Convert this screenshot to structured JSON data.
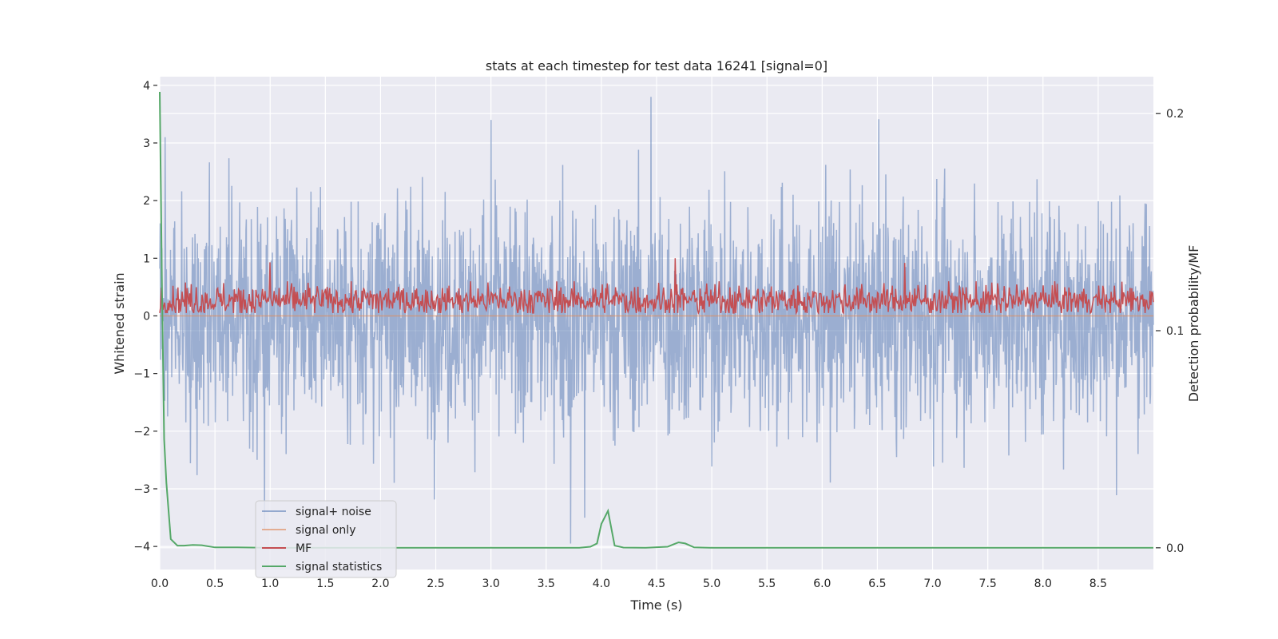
{
  "chart_data": {
    "type": "line",
    "title": "stats at each timestep for test data 16241 [signal=0]",
    "xlabel": "Time (s)",
    "ylabel": "Whitened strain",
    "ylabel_right": "Detection probability/MF",
    "xlim": [
      0.0,
      9.0
    ],
    "ylim": [
      -4.4,
      4.15
    ],
    "ylim_right": [
      -0.01,
      0.217
    ],
    "x_ticks": [
      "0.0",
      "0.5",
      "1.0",
      "1.5",
      "2.0",
      "2.5",
      "3.0",
      "3.5",
      "4.0",
      "4.5",
      "5.0",
      "5.5",
      "6.0",
      "6.5",
      "7.0",
      "7.5",
      "8.0",
      "8.5"
    ],
    "y_ticks": [
      "4",
      "3",
      "2",
      "1",
      "0",
      "−1",
      "−2",
      "−3",
      "−4"
    ],
    "y_ticks_right": [
      "0.2",
      "0.1",
      "0.0"
    ],
    "grid": true,
    "legend_position": "lower-left",
    "background": "#eaeaf2",
    "series": [
      {
        "name": "signal+ noise",
        "axis": "left",
        "color": "#4c72b0",
        "opacity": 0.5,
        "description": "dense noise oscillating roughly between -2.5 and 2.5 with spikes near ±3.5",
        "sample_range": [
          0.0,
          9.0
        ],
        "typical_amplitude": 1.0,
        "peaks": [
          {
            "x": 4.45,
            "y": 3.8
          },
          {
            "x": 3.0,
            "y": 3.4
          },
          {
            "x": 0.05,
            "y": 3.1
          }
        ],
        "troughs": [
          {
            "x": 3.72,
            "y": -4.0
          },
          {
            "x": 0.95,
            "y": -3.7
          },
          {
            "x": 3.85,
            "y": -3.5
          }
        ]
      },
      {
        "name": "signal only",
        "axis": "left",
        "color": "#dd8452",
        "values_x": [
          0.0,
          9.0
        ],
        "values_y": [
          0.0,
          0.0
        ]
      },
      {
        "name": "MF",
        "axis": "left",
        "color": "#c44e52",
        "description": "noisy band roughly between 0.05 and 0.6 with peaks near 1.0",
        "typical_range": [
          0.05,
          0.6
        ],
        "peaks": [
          {
            "x": 4.67,
            "y": 1.0
          },
          {
            "x": 1.0,
            "y": 0.93
          },
          {
            "x": 6.75,
            "y": 0.92
          }
        ]
      },
      {
        "name": "signal statistics",
        "axis": "right",
        "color": "#55a868",
        "x": [
          0.0,
          0.02,
          0.04,
          0.06,
          0.1,
          0.16,
          0.22,
          0.3,
          0.38,
          0.5,
          0.7,
          1.0,
          1.5,
          2.0,
          3.0,
          3.5,
          3.8,
          3.9,
          3.96,
          4.0,
          4.06,
          4.12,
          4.2,
          4.4,
          4.6,
          4.65,
          4.7,
          4.76,
          4.84,
          5.0,
          6.0,
          7.0,
          8.0,
          9.0
        ],
        "y": [
          0.21,
          0.12,
          0.05,
          0.03,
          0.004,
          0.001,
          0.001,
          0.0013,
          0.0012,
          0.0002,
          0.0002,
          0.0,
          0.0,
          0.0,
          0.0,
          0.0,
          0.0,
          0.0005,
          0.002,
          0.011,
          0.017,
          0.001,
          0.0001,
          0.0,
          0.0005,
          0.0015,
          0.0025,
          0.002,
          0.0002,
          0.0,
          0.0,
          0.0,
          0.0,
          0.0
        ]
      }
    ]
  }
}
